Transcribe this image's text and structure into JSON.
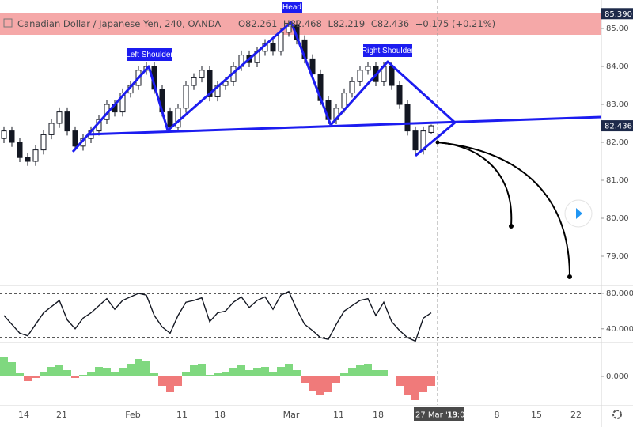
{
  "chart_data": [
    {
      "type": "candlestick",
      "title": "Canadian Dollar / Japanese Yen, 240, OANDA",
      "ohlc_labels": [
        "O",
        "H",
        "L",
        "C"
      ],
      "change": "+0.175 (+0.21%)",
      "annotations": [
        "Left Shoulder",
        "Head",
        "Right Shoulder"
      ],
      "open": [
        82.1,
        82.3,
        82.0,
        81.6,
        81.5,
        81.8,
        82.2,
        82.5,
        82.8,
        82.3,
        81.9,
        82.1,
        82.3,
        82.6,
        83.0,
        82.8,
        83.3,
        83.5,
        83.9,
        84.0,
        83.4,
        82.8,
        82.4,
        82.9,
        83.5,
        83.7,
        83.9,
        83.2,
        83.5,
        83.6,
        84.0,
        84.3,
        84.1,
        84.4,
        84.6,
        84.4,
        84.9,
        85.1,
        84.7,
        84.2,
        83.8,
        83.1,
        82.6,
        82.9,
        83.3,
        83.6,
        83.9,
        84.0,
        83.6,
        84.0,
        83.5,
        83.0,
        82.3,
        81.8,
        82.261
      ],
      "high": [
        82.42,
        82.42,
        82.12,
        81.72,
        81.92,
        82.32,
        82.62,
        82.92,
        82.92,
        82.42,
        82.22,
        82.42,
        82.72,
        83.12,
        83.12,
        83.42,
        83.62,
        84.02,
        84.12,
        84.12,
        83.52,
        82.92,
        83.02,
        83.62,
        83.82,
        84.02,
        84.02,
        83.62,
        83.72,
        84.12,
        84.42,
        84.42,
        84.52,
        84.72,
        84.72,
        85.02,
        85.22,
        85.22,
        84.82,
        84.32,
        83.92,
        83.22,
        83.02,
        83.42,
        83.72,
        84.02,
        84.12,
        84.12,
        84.12,
        84.12,
        83.62,
        83.12,
        82.42,
        82.42,
        82.468
      ],
      "low": [
        81.98,
        81.88,
        81.48,
        81.38,
        81.38,
        81.68,
        82.08,
        82.38,
        82.18,
        81.78,
        81.78,
        81.98,
        82.18,
        82.48,
        82.68,
        82.68,
        83.18,
        83.38,
        83.78,
        83.28,
        82.68,
        82.28,
        82.28,
        82.78,
        83.38,
        83.58,
        83.08,
        83.08,
        83.38,
        83.48,
        83.88,
        83.98,
        83.98,
        84.28,
        84.28,
        84.28,
        84.78,
        84.58,
        84.08,
        83.68,
        82.98,
        82.48,
        82.48,
        82.78,
        83.18,
        83.48,
        83.78,
        83.48,
        83.48,
        83.38,
        82.88,
        82.18,
        81.68,
        81.68,
        82.219
      ],
      "close": [
        82.3,
        82.0,
        81.6,
        81.5,
        81.8,
        82.2,
        82.5,
        82.8,
        82.3,
        81.9,
        82.1,
        82.3,
        82.6,
        83.0,
        82.8,
        83.3,
        83.5,
        83.9,
        84.0,
        83.4,
        82.8,
        82.4,
        82.9,
        83.5,
        83.7,
        83.9,
        83.2,
        83.5,
        83.6,
        84.0,
        84.3,
        84.1,
        84.4,
        84.6,
        84.4,
        84.9,
        85.1,
        84.7,
        84.2,
        83.8,
        83.1,
        82.6,
        82.9,
        83.3,
        83.6,
        83.9,
        84.0,
        83.6,
        84.0,
        83.5,
        83.0,
        82.3,
        81.8,
        82.3,
        82.436
      ],
      "up_color": "#ffffff",
      "down_color": "#131722",
      "outline_color": "#131722",
      "price_marker": {
        "value": 85.39,
        "label": "85.390"
      },
      "highlight_color": "#f28b8b",
      "xlim": [
        -0.5,
        75.5
      ],
      "xticks": [
        {
          "value": 2.5,
          "label": "14"
        },
        {
          "value": 7.3,
          "label": "21"
        },
        {
          "value": 16.3,
          "label": "Feb"
        },
        {
          "value": 22.5,
          "label": "11"
        },
        {
          "value": 27.3,
          "label": "18"
        },
        {
          "value": 36.3,
          "label": "Mar"
        },
        {
          "value": 42.3,
          "label": "11"
        },
        {
          "value": 47.3,
          "label": "18"
        },
        {
          "value": 62.3,
          "label": "8"
        },
        {
          "value": 67.3,
          "label": "15"
        },
        {
          "value": 72.3,
          "label": "22"
        }
      ],
      "crosshair": {
        "x": 54.8,
        "labels": [
          "27 Mar '19",
          "13:00"
        ]
      },
      "ylim": [
        78.25,
        85.75
      ],
      "yticks": [
        {
          "value": 85,
          "label": "85.00"
        },
        {
          "value": 84,
          "label": "84.00"
        },
        {
          "value": 83,
          "label": "83.00"
        },
        {
          "value": 82,
          "label": "82.00"
        },
        {
          "value": 81,
          "label": "81.00"
        },
        {
          "value": 80,
          "label": "80.00"
        },
        {
          "value": 79,
          "label": "79.00"
        }
      ],
      "grid": false
    },
    {
      "type": "line",
      "values": [
        55,
        45,
        35,
        32,
        45,
        58,
        65,
        72,
        50,
        40,
        52,
        58,
        66,
        74,
        62,
        72,
        76,
        80,
        78,
        55,
        42,
        35,
        55,
        70,
        72,
        75,
        48,
        58,
        60,
        70,
        76,
        64,
        72,
        76,
        62,
        78,
        82,
        62,
        45,
        38,
        30,
        28,
        45,
        60,
        66,
        72,
        74,
        55,
        70,
        48,
        38,
        30,
        26,
        52,
        58
      ],
      "color": "#131722",
      "levels": [
        80,
        30
      ],
      "ylim": [
        25.5,
        88
      ],
      "yticks": [
        {
          "value": 80,
          "label": "80.0000"
        },
        {
          "value": 40,
          "label": "40.0000"
        }
      ]
    },
    {
      "type": "bar",
      "values": [
        0.6,
        0.45,
        0.1,
        -0.15,
        -0.05,
        0.15,
        0.3,
        0.35,
        0.2,
        -0.05,
        0.05,
        0.15,
        0.3,
        0.25,
        0.15,
        0.25,
        0.4,
        0.55,
        0.5,
        0.1,
        -0.3,
        -0.5,
        -0.3,
        0.15,
        0.35,
        0.4,
        0.05,
        0.1,
        0.15,
        0.25,
        0.35,
        0.2,
        0.25,
        0.3,
        0.15,
        0.3,
        0.4,
        0.2,
        -0.2,
        -0.45,
        -0.6,
        -0.5,
        -0.2,
        0.1,
        0.25,
        0.35,
        0.4,
        0.2,
        0.2,
        0.0,
        -0.3,
        -0.6,
        -0.75,
        -0.5,
        -0.3
      ],
      "positive_color": "#7fd87f",
      "negative_color": "#f07a7a",
      "ylim": [
        -0.9,
        1.0
      ],
      "yticks": [
        {
          "value": 0,
          "label": "0.000"
        }
      ]
    }
  ]
}
